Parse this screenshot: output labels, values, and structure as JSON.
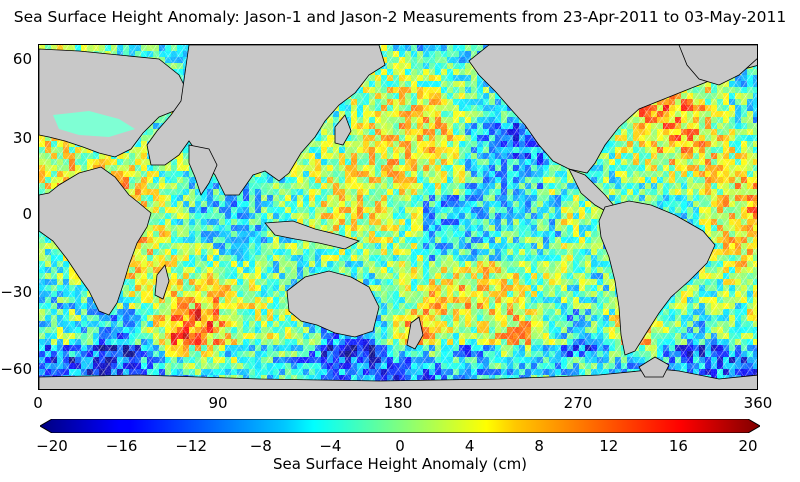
{
  "title": "Sea Surface Height Anomaly: Jason-1 and Jason-2 Measurements from 23-Apr-2011 to 03-May-2011",
  "map": {
    "type": "heatmap",
    "x_ticks": [
      "0",
      "90",
      "180",
      "270",
      "360"
    ],
    "x_tick_values": [
      0,
      90,
      180,
      270,
      360
    ],
    "y_ticks": [
      "60",
      "30",
      "0",
      "−30",
      "−60"
    ],
    "y_tick_values": [
      60,
      30,
      0,
      -30,
      -60
    ],
    "xlim": [
      0,
      360
    ],
    "ylim": [
      -70,
      70
    ],
    "land_color": "#c8c8c8",
    "colormap": "jet"
  },
  "colorbar": {
    "label": "Sea Surface Height Anomaly (cm)",
    "ticks": [
      "−20",
      "−16",
      "−12",
      "−8",
      "−4",
      "0",
      "4",
      "8",
      "12",
      "16",
      "20"
    ],
    "tick_values": [
      -20,
      -16,
      -12,
      -8,
      -4,
      0,
      4,
      8,
      12,
      16,
      20
    ],
    "range": [
      -20,
      20
    ]
  }
}
